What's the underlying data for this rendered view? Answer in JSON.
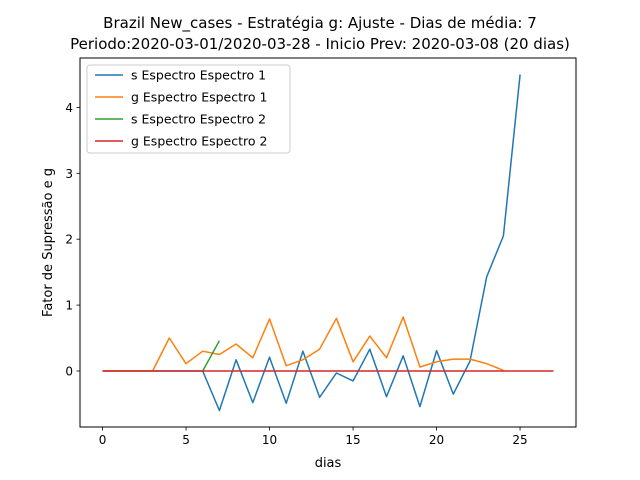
{
  "chart_data": {
    "type": "line",
    "title_line1": "Brazil New_cases - Estratégia g: Ajuste - Dias de média: 7",
    "title_line2": "Periodo:2020-03-01/2020-03-28 - Inicio Prev: 2020-03-08 (20 dias)",
    "xlabel": "dias",
    "ylabel": "Fator de Supressão e g",
    "xlim": [
      -1.35,
      28.35
    ],
    "ylim": [
      -0.85,
      4.75
    ],
    "xticks": [
      0,
      5,
      10,
      15,
      20,
      25
    ],
    "yticks": [
      0,
      1,
      2,
      3,
      4
    ],
    "grid": false,
    "legend_position": "upper-left",
    "series": [
      {
        "name": "s Espectro Espectro 1",
        "color": "#1f77b4",
        "x": [
          0,
          1,
          2,
          3,
          4,
          5,
          6,
          7,
          8,
          9,
          10,
          11,
          12,
          13,
          14,
          15,
          16,
          17,
          18,
          19,
          20,
          21,
          22,
          23,
          24,
          25
        ],
        "y": [
          0,
          0,
          0,
          0,
          0,
          0,
          0,
          -0.6,
          0.17,
          -0.48,
          0.21,
          -0.49,
          0.3,
          -0.4,
          -0.03,
          -0.15,
          0.33,
          -0.39,
          0.23,
          -0.54,
          0.31,
          -0.35,
          0.15,
          1.43,
          2.05,
          4.5
        ]
      },
      {
        "name": "g Espectro Espectro 1",
        "color": "#ff7f0e",
        "x": [
          0,
          1,
          2,
          3,
          4,
          5,
          6,
          7,
          8,
          9,
          10,
          11,
          12,
          13,
          14,
          15,
          16,
          17,
          18,
          19,
          20,
          21,
          22,
          23,
          24
        ],
        "y": [
          0,
          0,
          0,
          0,
          0.5,
          0.11,
          0.3,
          0.25,
          0.41,
          0.2,
          0.79,
          0.08,
          0.17,
          0.33,
          0.8,
          0.14,
          0.53,
          0.2,
          0.82,
          0.06,
          0.14,
          0.18,
          0.18,
          0.11,
          0.01
        ]
      },
      {
        "name": "s Espectro Espectro 2",
        "color": "#2ca02c",
        "x": [
          6,
          7
        ],
        "y": [
          0,
          0.46
        ]
      },
      {
        "name": "g Espectro Espectro 2",
        "color": "#d62728",
        "x": [
          0,
          27
        ],
        "y": [
          0,
          0
        ]
      }
    ]
  }
}
